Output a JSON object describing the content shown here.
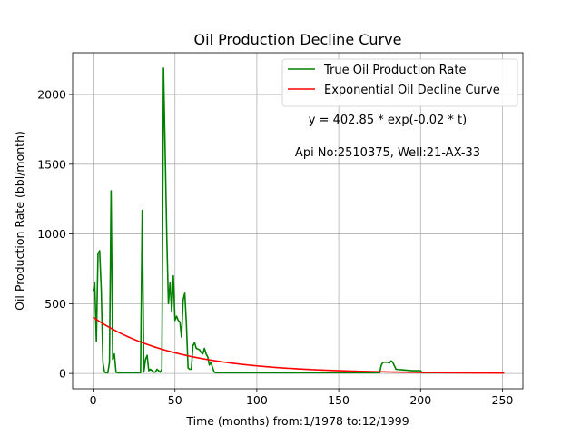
{
  "chart_data": {
    "type": "line",
    "title": "Oil Production Decline Curve",
    "xlabel": "Time (months) from:1/1978 to:12/1999",
    "ylabel": "Oil Production Rate (bbl/month)",
    "xlim": [
      -12.5,
      262.5
    ],
    "ylim": [
      -110,
      2300
    ],
    "xticks": [
      0,
      50,
      100,
      150,
      200,
      250
    ],
    "yticks": [
      0,
      500,
      1000,
      1500,
      2000
    ],
    "grid": true,
    "legend_position": "top-right",
    "annotations": [
      "y = 402.85 * exp(-0.02 * t)",
      "Api No:2510375, Well:21-AX-33"
    ],
    "fit": {
      "a": 402.85,
      "b": 0.02,
      "t_start": 0,
      "t_end": 251
    },
    "series": [
      {
        "name": "True Oil Production Rate",
        "color": "#008000",
        "x": [
          0,
          1,
          2,
          3,
          4,
          5,
          6,
          7,
          8,
          9,
          10,
          11,
          12,
          13,
          14,
          15,
          16,
          17,
          18,
          19,
          20,
          21,
          22,
          23,
          24,
          25,
          26,
          27,
          28,
          29,
          30,
          31,
          32,
          33,
          34,
          35,
          36,
          37,
          38,
          39,
          40,
          41,
          42,
          43,
          44,
          45,
          46,
          47,
          48,
          49,
          50,
          51,
          52,
          53,
          54,
          55,
          56,
          57,
          58,
          59,
          60,
          61,
          62,
          63,
          64,
          65,
          66,
          67,
          68,
          69,
          70,
          71,
          72,
          73,
          74,
          75,
          76,
          77,
          78,
          79,
          80,
          90,
          100,
          120,
          140,
          160,
          170,
          175,
          176,
          177,
          178,
          179,
          180,
          181,
          182,
          183,
          185,
          190,
          195,
          200,
          201,
          202,
          210,
          220,
          230,
          240,
          251
        ],
        "y": [
          590,
          650,
          230,
          860,
          880,
          600,
          80,
          10,
          5,
          5,
          80,
          1310,
          100,
          140,
          10,
          5,
          5,
          5,
          5,
          5,
          5,
          5,
          5,
          5,
          5,
          5,
          5,
          5,
          5,
          5,
          1170,
          10,
          100,
          130,
          20,
          30,
          20,
          10,
          10,
          30,
          20,
          10,
          30,
          2190,
          1600,
          980,
          500,
          650,
          440,
          700,
          380,
          410,
          380,
          370,
          260,
          530,
          575,
          350,
          40,
          30,
          30,
          200,
          220,
          180,
          175,
          170,
          150,
          140,
          180,
          140,
          120,
          60,
          80,
          40,
          10,
          5,
          5,
          5,
          5,
          5,
          5,
          5,
          5,
          5,
          5,
          5,
          5,
          5,
          60,
          80,
          80,
          80,
          80,
          75,
          90,
          80,
          30,
          25,
          20,
          20,
          5,
          5,
          5,
          5,
          5,
          5,
          5
        ]
      },
      {
        "name": "Exponential Oil Decline Curve",
        "color": "#ff0000",
        "x": [],
        "y": []
      }
    ]
  }
}
